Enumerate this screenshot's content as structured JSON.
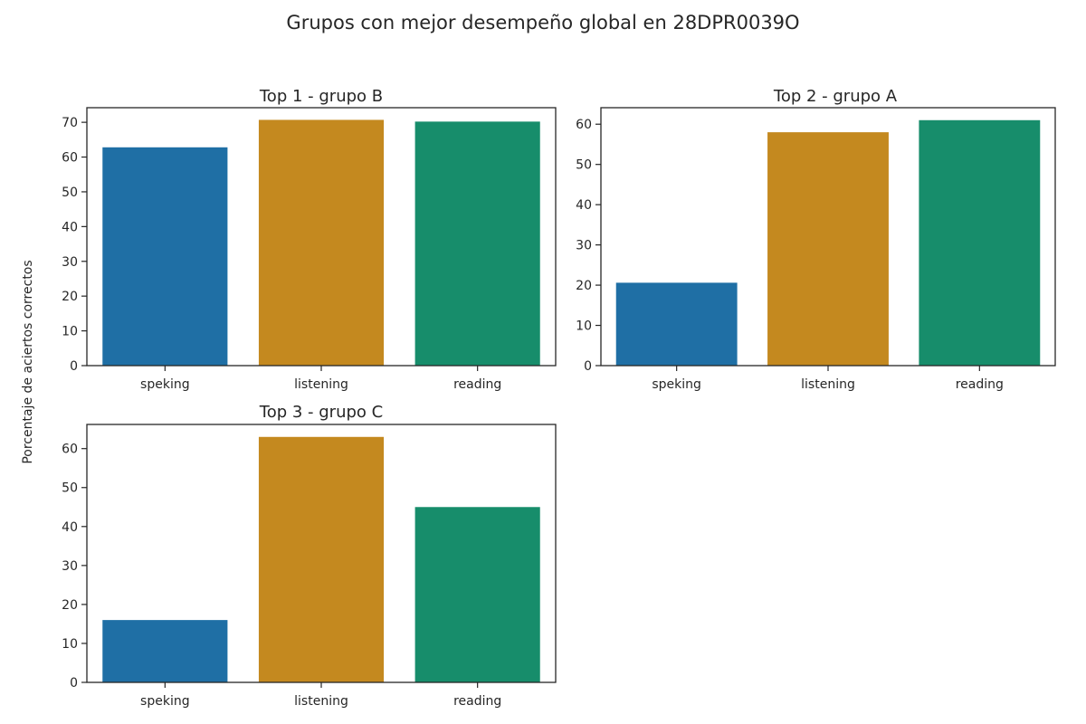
{
  "figure": {
    "title": "Grupos con mejor desempeño global en 28DPR0039O",
    "ylabel": "Porcentaje de aciertos correctos"
  },
  "colors": {
    "speking": "#1f6fa5",
    "listening": "#c4891f",
    "reading": "#178d6b",
    "axis": "#262626",
    "background": "#ffffff"
  },
  "chart_data": [
    {
      "type": "bar",
      "title": "Top  1 - grupo B",
      "categories": [
        "speking",
        "listening",
        "reading"
      ],
      "values": [
        62.8,
        70.7,
        70.2
      ],
      "ylim": [
        0,
        74.2
      ],
      "yticks": [
        0,
        10,
        20,
        30,
        40,
        50,
        60,
        70
      ],
      "xlabel": "",
      "ylabel": "",
      "grid": false
    },
    {
      "type": "bar",
      "title": "Top  2 - grupo A",
      "categories": [
        "speking",
        "listening",
        "reading"
      ],
      "values": [
        20.6,
        58.0,
        61.0
      ],
      "ylim": [
        0,
        64.1
      ],
      "yticks": [
        0,
        10,
        20,
        30,
        40,
        50,
        60
      ],
      "xlabel": "",
      "ylabel": "",
      "grid": false
    },
    {
      "type": "bar",
      "title": "Top  3 - grupo C",
      "categories": [
        "speking",
        "listening",
        "reading"
      ],
      "values": [
        16.0,
        63.0,
        45.0
      ],
      "ylim": [
        0,
        66.2
      ],
      "yticks": [
        0,
        10,
        20,
        30,
        40,
        50,
        60
      ],
      "xlabel": "",
      "ylabel": "",
      "grid": false
    }
  ]
}
